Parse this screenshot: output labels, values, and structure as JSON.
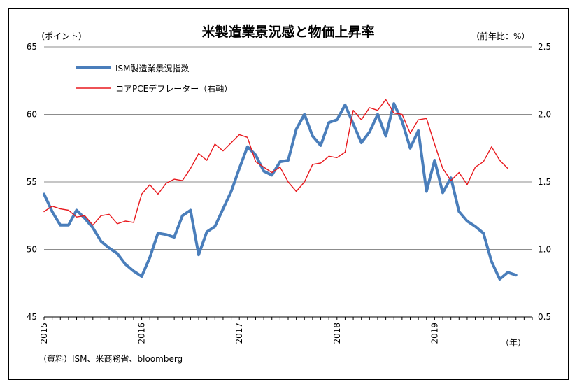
{
  "chart_data": {
    "type": "line",
    "title": "米製造業景況感と物価上昇率",
    "left_unit": "（ポイント）",
    "right_unit": "（前年比：%）",
    "x_unit": "（年）",
    "source": "（資料）ISM、米商務省、bloomberg",
    "x_ticks": [
      "2015",
      "2016",
      "2017",
      "2018",
      "2019"
    ],
    "y_left": {
      "min": 45,
      "max": 65,
      "ticks": [
        "45",
        "50",
        "55",
        "60",
        "65"
      ]
    },
    "y_right": {
      "min": 0.5,
      "max": 2.5,
      "ticks": [
        "0.5",
        "1.0",
        "1.5",
        "2.0",
        "2.5"
      ]
    },
    "grid": true,
    "legend_position": "top-left",
    "series": [
      {
        "name": "ISM製造業景況指数",
        "axis": "left",
        "color": "#4a7ebb",
        "start": "2015-01",
        "values": [
          54.1,
          52.8,
          51.8,
          51.8,
          52.9,
          52.3,
          51.6,
          50.6,
          50.1,
          49.7,
          48.9,
          48.4,
          48.0,
          49.4,
          51.2,
          51.1,
          50.9,
          52.5,
          52.9,
          49.6,
          51.3,
          51.7,
          53.0,
          54.3,
          56.0,
          57.6,
          57.0,
          55.8,
          55.5,
          56.5,
          56.6,
          58.9,
          60.0,
          58.4,
          57.7,
          59.4,
          59.6,
          60.7,
          59.3,
          57.9,
          58.7,
          60.0,
          58.4,
          60.8,
          59.5,
          57.5,
          58.8,
          54.3,
          56.6,
          54.2,
          55.3,
          52.8,
          52.1,
          51.7,
          51.2,
          49.1,
          47.8,
          48.3,
          48.1
        ]
      },
      {
        "name": "コアPCEデフレーター（右軸）",
        "axis": "right",
        "color": "#e8191e",
        "start": "2015-01",
        "values": [
          1.28,
          1.32,
          1.3,
          1.29,
          1.24,
          1.25,
          1.18,
          1.25,
          1.26,
          1.19,
          1.21,
          1.2,
          1.41,
          1.48,
          1.41,
          1.49,
          1.52,
          1.51,
          1.6,
          1.71,
          1.66,
          1.78,
          1.73,
          1.79,
          1.85,
          1.83,
          1.65,
          1.61,
          1.57,
          1.61,
          1.5,
          1.43,
          1.5,
          1.63,
          1.64,
          1.69,
          1.68,
          1.72,
          2.03,
          1.96,
          2.05,
          2.03,
          2.11,
          2.01,
          2.0,
          1.86,
          1.96,
          1.97,
          1.78,
          1.6,
          1.51,
          1.57,
          1.48,
          1.61,
          1.65,
          1.76,
          1.66,
          1.6
        ]
      }
    ]
  }
}
